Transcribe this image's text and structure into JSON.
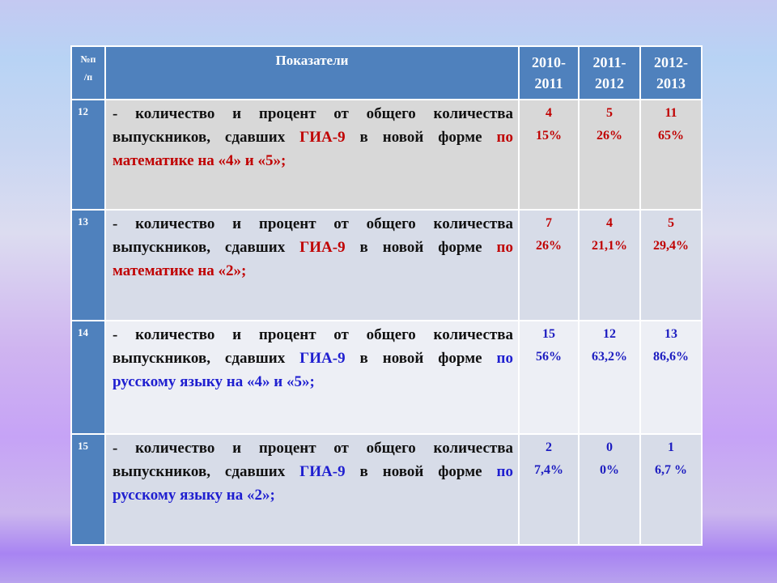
{
  "header": {
    "num": "№п/п",
    "num_line1": "№п",
    "num_line2": "/п",
    "indicator": "Показатели",
    "years": [
      {
        "line1": "2010-",
        "line2": "2011"
      },
      {
        "line1": "2011-",
        "line2": "2012"
      },
      {
        "line1": "2012-",
        "line2": "2013"
      }
    ]
  },
  "rows": [
    {
      "num": "12",
      "text_plain": "- количество и процент от общего количества выпускников, сдавших ",
      "exam": "ГИА-9",
      "text_mid": " в новой форме ",
      "subject": "по математике  на «4» и «5»;",
      "color": "#c00000",
      "values": [
        {
          "count": "4",
          "percent": "15%"
        },
        {
          "count": "5",
          "percent": "26%"
        },
        {
          "count": "11",
          "percent": "65%"
        }
      ]
    },
    {
      "num": "13",
      "text_plain": "- количество и процент от общего количества выпускников, сдавших ",
      "exam": "ГИА-9",
      "text_mid": " в новой форме ",
      "subject": "по математике  на «2»;",
      "color": "#c00000",
      "values": [
        {
          "count": "7",
          "percent": "26%"
        },
        {
          "count": "4",
          "percent": "21,1%"
        },
        {
          "count": "5",
          "percent": "29,4%"
        }
      ]
    },
    {
      "num": "14",
      "text_plain": "- количество и процент от общего количества выпускников, сдавших ",
      "exam": "ГИА-9",
      "text_mid": " в новой форме ",
      "subject": "по русскому языку  на «4» и «5»;",
      "color": "#1f1fd0",
      "values": [
        {
          "count": "15",
          "percent": "56%"
        },
        {
          "count": "12",
          "percent": "63,2%"
        },
        {
          "count": "13",
          "percent": "86,6%"
        }
      ]
    },
    {
      "num": "15",
      "text_plain": "- количество и процент от общего количества выпускников, сдавших ",
      "exam": "ГИА-9",
      "text_mid": " в новой форме ",
      "subject": "по русскому языку  на «2»;",
      "color": "#1f1fd0",
      "values": [
        {
          "count": "2",
          "percent": "7,4%"
        },
        {
          "count": "0",
          "percent": "0%"
        },
        {
          "count": "1",
          "percent": "6,7 %"
        }
      ]
    }
  ]
}
